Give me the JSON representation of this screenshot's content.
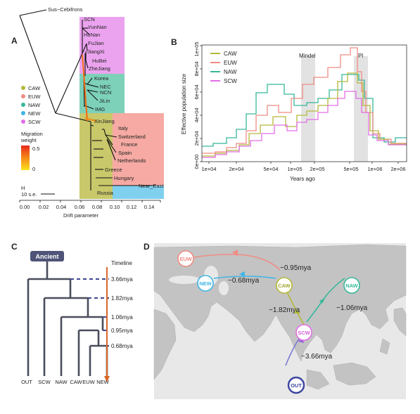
{
  "panels": {
    "a": "A",
    "b": "B",
    "c": "C",
    "d": "D"
  },
  "panel_a": {
    "outgroup": "Sus−Cebifrons",
    "tips": [
      "SCN",
      "YunNan",
      "HuNan",
      "FuJian",
      "JiangXi",
      "HuBei",
      "ZheJiang",
      "Korea",
      "NEC",
      "NCN",
      "JiLin",
      "IMG",
      "XinJiang",
      "Italy",
      "Switzerland",
      "France",
      "Spain",
      "Netherlands",
      "Greece",
      "Hungary",
      "Near_East",
      "Russia"
    ],
    "legend": [
      {
        "label": "CAW",
        "color": "#b5b83a"
      },
      {
        "label": "EUW",
        "color": "#f08c84"
      },
      {
        "label": "NAW",
        "color": "#36b89a"
      },
      {
        "label": "NEW",
        "color": "#3fb5e6"
      },
      {
        "label": "SCW",
        "color": "#e26ee6"
      }
    ],
    "region_colors": {
      "SCW": "#eba3ef",
      "NAW": "#7dd1b9",
      "CAW": "#c9c86a",
      "EUW": "#f6aaa3",
      "NEW": "#7fd0ef"
    },
    "migration_title": [
      "Migration",
      "weight"
    ],
    "migration_max": "0.5",
    "migration_min": "0",
    "scale_h": "H",
    "scale_se": "10 s.e.",
    "x_ticks": [
      "0.00",
      "0.02",
      "0.04",
      "0.06",
      "0.08",
      "0.10",
      "0.12",
      "0.14"
    ],
    "x_label": "Drift parameter"
  },
  "panel_b": {
    "y_label": "Effective population size",
    "x_label": "Years ago",
    "y_ticks": [
      "0e+00",
      "2e+04",
      "4e+04",
      "6e+04",
      "8e+04",
      "1e+05"
    ],
    "x_ticks": [
      "1e+04",
      "2e+04",
      "5e+04",
      "1e+05",
      "2e+05",
      "5e+05",
      "1e+06",
      "2e+06"
    ],
    "shade_labels": [
      "Mindel",
      "Pl"
    ],
    "legend": [
      {
        "label": "CAW",
        "color": "#b5b83a"
      },
      {
        "label": "EUW",
        "color": "#f08c84"
      },
      {
        "label": "NAW",
        "color": "#36b89a"
      },
      {
        "label": "SCW",
        "color": "#e26ee6"
      }
    ]
  },
  "panel_c": {
    "root": "Ancient",
    "timeline_label": "Timeline",
    "times": [
      "3.66mya",
      "1.82mya",
      "1.06mya",
      "0.95mya",
      "0.68mya"
    ],
    "leaves": [
      "OUT",
      "SCW",
      "NAW",
      "CAW",
      "EUW",
      "NEW"
    ]
  },
  "panel_d": {
    "nodes": {
      "euw": "EUW",
      "new": "NEW",
      "caw": "CAW",
      "naw": "NAW",
      "scw": "SCW",
      "out": "OUT"
    },
    "times": {
      "caw_euw": "~0.95mya",
      "caw_new": "~0.68mya",
      "scw_caw": "~1.82mya",
      "scw_naw": "~1.06mya",
      "out_scw": "~3.66mya"
    }
  }
}
